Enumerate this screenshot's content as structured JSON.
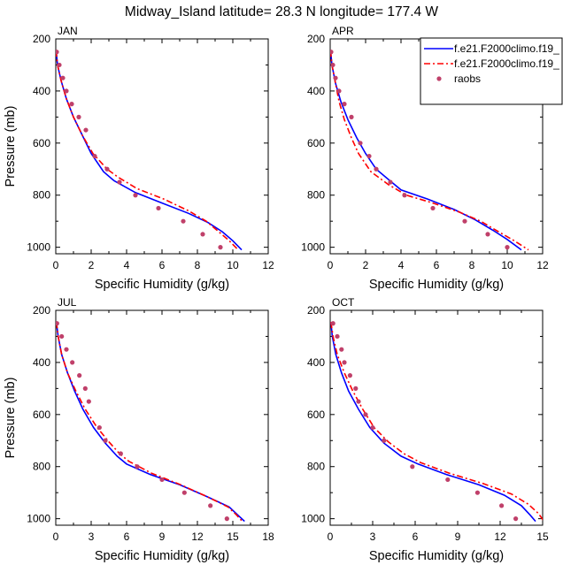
{
  "title": "Midway_Island  latitude= 28.3 N longitude= 177.4 W",
  "legend": {
    "entries": [
      {
        "label": "f.e21.F2000climo.f19_",
        "color": "#0000ff",
        "style": "solid"
      },
      {
        "label": "f.e21.F2000climo.f19_",
        "color": "#ff0000",
        "style": "dashed"
      },
      {
        "label": "raobs",
        "color": "#c0406a",
        "style": "marker"
      }
    ]
  },
  "chart_data": [
    {
      "type": "line",
      "panel": "JAN",
      "xlabel": "Specific Humidity (g/kg)",
      "ylabel": "Pressure (mb)",
      "xlim": [
        0,
        12
      ],
      "ylim": [
        200,
        1025
      ],
      "y_reversed": true,
      "xticks": [
        0,
        2,
        4,
        6,
        8,
        10,
        12
      ],
      "xtick_labels": [
        "0",
        "2",
        "4",
        "6",
        "8",
        "10",
        "12"
      ],
      "yticks": [
        200,
        400,
        600,
        800,
        1000
      ],
      "ytick_labels": [
        "200",
        "400",
        "600",
        "800",
        "1000"
      ],
      "series": [
        {
          "name": "f.e21.F2000climo.f19_ (solid)",
          "color": "#0000ff",
          "x": [
            0.02,
            0.1,
            0.3,
            0.6,
            1.0,
            1.5,
            2.0,
            2.7,
            3.3,
            4.5,
            6.0,
            7.5,
            8.6,
            9.4,
            10.0,
            10.5
          ],
          "y": [
            245,
            300,
            360,
            430,
            500,
            570,
            640,
            710,
            745,
            790,
            830,
            870,
            905,
            940,
            975,
            1010
          ]
        },
        {
          "name": "f.e21.F2000climo.f19_ (dashed)",
          "color": "#ff0000",
          "x": [
            0.02,
            0.1,
            0.3,
            0.6,
            1.0,
            1.5,
            2.1,
            2.9,
            3.5,
            4.6,
            6.1,
            7.5,
            8.5,
            9.2,
            9.8,
            10.3
          ],
          "y": [
            245,
            300,
            360,
            430,
            500,
            570,
            640,
            700,
            730,
            775,
            815,
            860,
            900,
            940,
            975,
            1010
          ]
        },
        {
          "name": "raobs",
          "color": "#c0406a",
          "x": [
            0.05,
            0.2,
            0.4,
            0.6,
            0.9,
            1.3,
            1.7,
            2.2,
            2.9,
            3.6,
            4.5,
            5.8,
            7.2,
            8.3,
            9.3
          ],
          "y": [
            250,
            300,
            350,
            400,
            450,
            500,
            550,
            650,
            700,
            750,
            800,
            850,
            900,
            950,
            1000
          ]
        }
      ]
    },
    {
      "type": "line",
      "panel": "APR",
      "xlabel": "Specific Humidity (g/kg)",
      "ylabel": "",
      "xlim": [
        0,
        12
      ],
      "ylim": [
        200,
        1025
      ],
      "y_reversed": true,
      "xticks": [
        0,
        2,
        4,
        6,
        8,
        10,
        12
      ],
      "xtick_labels": [
        "0",
        "2",
        "4",
        "6",
        "8",
        "10",
        "12"
      ],
      "yticks": [
        200,
        400,
        600,
        800,
        1000
      ],
      "ytick_labels": [
        "200",
        "400",
        "600",
        "800",
        "1000"
      ],
      "series": [
        {
          "name": "f.e21.F2000climo.f19_ (solid)",
          "color": "#0000ff",
          "x": [
            0.02,
            0.1,
            0.3,
            0.6,
            1.0,
            1.5,
            2.0,
            2.6,
            3.3,
            4.0,
            5.5,
            7.0,
            8.2,
            9.2,
            10.0,
            10.8
          ],
          "y": [
            245,
            300,
            370,
            440,
            510,
            580,
            640,
            700,
            740,
            780,
            815,
            855,
            895,
            935,
            970,
            1010
          ]
        },
        {
          "name": "f.e21.F2000climo.f19_ (dashed)",
          "color": "#ff0000",
          "x": [
            0.02,
            0.1,
            0.3,
            0.5,
            0.8,
            1.2,
            1.6,
            2.3,
            3.3,
            4.3,
            5.8,
            7.3,
            8.5,
            9.5,
            10.4,
            11.2
          ],
          "y": [
            245,
            300,
            370,
            440,
            510,
            580,
            640,
            710,
            760,
            800,
            830,
            865,
            900,
            940,
            975,
            1010
          ]
        },
        {
          "name": "raobs",
          "color": "#c0406a",
          "x": [
            0.05,
            0.15,
            0.3,
            0.5,
            0.8,
            1.2,
            1.7,
            2.2,
            2.6,
            3.4,
            4.2,
            5.8,
            7.6,
            8.9,
            10.0
          ],
          "y": [
            250,
            300,
            350,
            400,
            450,
            500,
            600,
            650,
            700,
            750,
            800,
            850,
            900,
            950,
            1000
          ]
        }
      ]
    },
    {
      "type": "line",
      "panel": "JUL",
      "xlabel": "Specific Humidity (g/kg)",
      "ylabel": "Pressure (mb)",
      "xlim": [
        0,
        18
      ],
      "ylim": [
        200,
        1025
      ],
      "y_reversed": true,
      "xticks": [
        0,
        3,
        6,
        9,
        12,
        15,
        18
      ],
      "xtick_labels": [
        "0",
        "3",
        "6",
        "9",
        "12",
        "15",
        "18"
      ],
      "yticks": [
        200,
        400,
        600,
        800,
        1000
      ],
      "ytick_labels": [
        "200",
        "400",
        "600",
        "800",
        "1000"
      ],
      "series": [
        {
          "name": "f.e21.F2000climo.f19_ (solid)",
          "color": "#0000ff",
          "x": [
            0.05,
            0.2,
            0.5,
            1.0,
            1.6,
            2.3,
            3.2,
            4.2,
            5.2,
            6.0,
            8.0,
            10.5,
            12.8,
            14.7,
            15.4,
            16.0
          ],
          "y": [
            245,
            300,
            370,
            440,
            510,
            580,
            650,
            710,
            760,
            790,
            830,
            870,
            915,
            955,
            985,
            1010
          ]
        },
        {
          "name": "f.e21.F2000climo.f19_ (dashed)",
          "color": "#ff0000",
          "x": [
            0.05,
            0.2,
            0.5,
            1.0,
            1.7,
            2.5,
            3.5,
            4.5,
            5.4,
            6.2,
            8.1,
            10.6,
            12.8,
            14.6,
            15.3,
            15.8
          ],
          "y": [
            245,
            300,
            370,
            440,
            510,
            580,
            650,
            705,
            750,
            780,
            825,
            870,
            915,
            955,
            985,
            1010
          ]
        },
        {
          "name": "raobs",
          "color": "#c0406a",
          "x": [
            0.1,
            0.5,
            0.9,
            1.4,
            2.0,
            2.5,
            2.8,
            3.7,
            4.2,
            5.5,
            6.9,
            9.0,
            10.9,
            13.1,
            14.5
          ],
          "y": [
            250,
            300,
            350,
            400,
            450,
            500,
            550,
            650,
            700,
            750,
            800,
            850,
            900,
            950,
            1000
          ]
        }
      ]
    },
    {
      "type": "line",
      "panel": "OCT",
      "xlabel": "Specific Humidity (g/kg)",
      "ylabel": "",
      "xlim": [
        0,
        15
      ],
      "ylim": [
        200,
        1025
      ],
      "y_reversed": true,
      "xticks": [
        0,
        3,
        6,
        9,
        12,
        15
      ],
      "xtick_labels": [
        "0",
        "3",
        "6",
        "9",
        "12",
        "15"
      ],
      "yticks": [
        200,
        400,
        600,
        800,
        1000
      ],
      "ytick_labels": [
        "200",
        "400",
        "600",
        "800",
        "1000"
      ],
      "series": [
        {
          "name": "f.e21.F2000climo.f19_ (solid)",
          "color": "#0000ff",
          "x": [
            0.05,
            0.15,
            0.4,
            0.8,
            1.3,
            2.0,
            2.8,
            3.8,
            5.0,
            6.2,
            8.2,
            10.5,
            12.3,
            13.5,
            14.1,
            14.5
          ],
          "y": [
            245,
            300,
            370,
            440,
            510,
            580,
            650,
            710,
            760,
            790,
            830,
            870,
            910,
            950,
            985,
            1010
          ]
        },
        {
          "name": "f.e21.F2000climo.f19_ (dashed)",
          "color": "#ff0000",
          "x": [
            0.05,
            0.2,
            0.5,
            1.0,
            1.6,
            2.3,
            3.1,
            4.1,
            5.2,
            6.4,
            8.4,
            10.8,
            12.8,
            14.0,
            14.7,
            15.1
          ],
          "y": [
            245,
            300,
            370,
            440,
            510,
            580,
            650,
            705,
            750,
            785,
            825,
            865,
            905,
            945,
            980,
            1010
          ]
        },
        {
          "name": "raobs",
          "color": "#c0406a",
          "x": [
            0.2,
            0.5,
            0.8,
            1.0,
            1.4,
            1.8,
            2.0,
            2.5,
            3.0,
            3.8,
            5.8,
            8.3,
            10.4,
            12.1,
            13.1
          ],
          "y": [
            250,
            300,
            350,
            400,
            450,
            500,
            550,
            600,
            650,
            700,
            800,
            850,
            900,
            950,
            1000
          ]
        }
      ]
    }
  ]
}
